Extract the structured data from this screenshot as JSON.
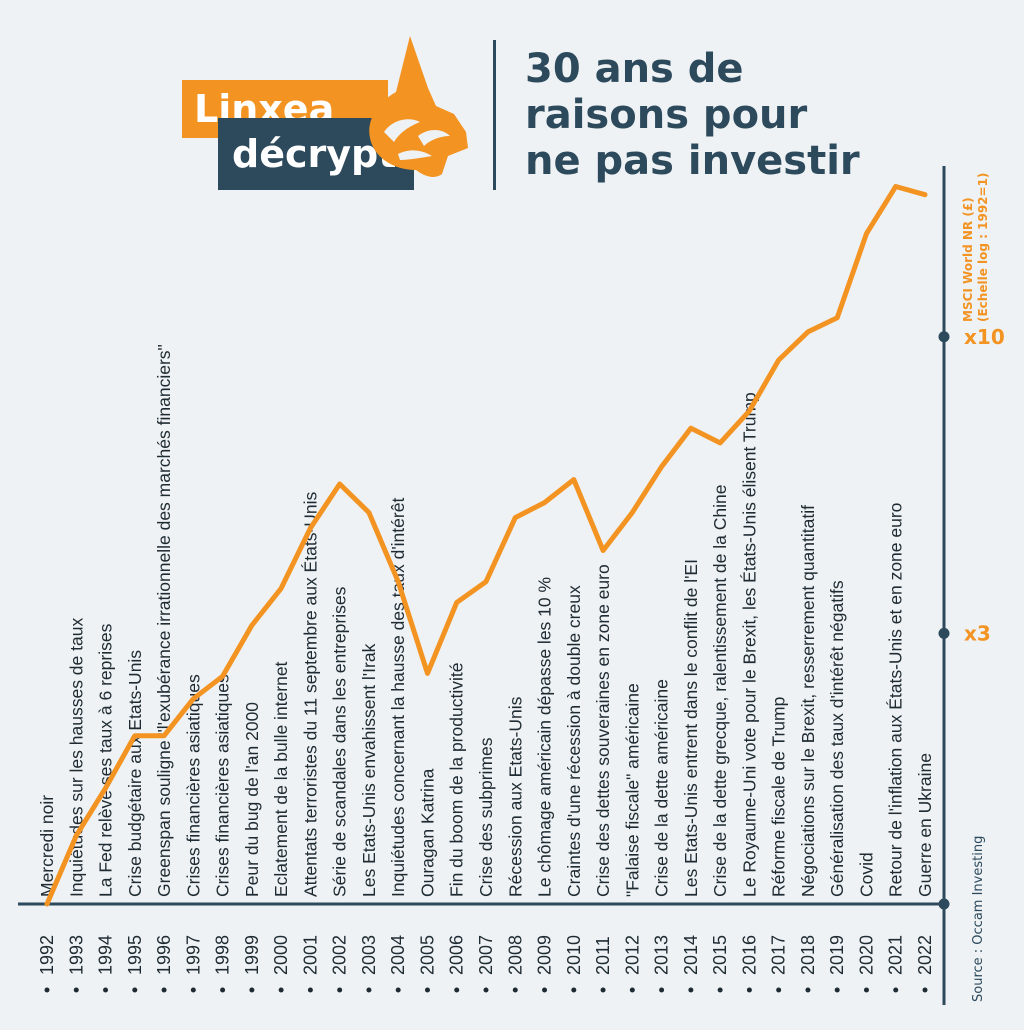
{
  "header": {
    "brand_line1": "Linxea",
    "brand_line2": "décrypte",
    "title_lines": [
      "30 ans de",
      "raisons pour",
      "ne pas investir"
    ]
  },
  "colors": {
    "accent": "#f39322",
    "dark": "#2d4a5d",
    "background": "#eef2f4",
    "text": "#1f2b33"
  },
  "icons": {
    "logo": "lynx-head-icon"
  },
  "source": "Source : Occam Investing",
  "chart_data": {
    "type": "line",
    "scale": "log",
    "ylabel": [
      "MSCI World NR (£)",
      "(Echelle log : 1992=1)"
    ],
    "yticks": [
      {
        "value": 3,
        "label": "x3"
      },
      {
        "value": 10,
        "label": "x10"
      }
    ],
    "ylim": [
      1,
      20
    ],
    "xlim": [
      1992,
      2022
    ],
    "grid": false,
    "x": [
      1992,
      1993,
      1994,
      1995,
      1996,
      1997,
      1998,
      1999,
      2000,
      2001,
      2002,
      2003,
      2004,
      2005,
      2006,
      2007,
      2008,
      2009,
      2010,
      2011,
      2012,
      2013,
      2014,
      2015,
      2016,
      2017,
      2018,
      2019,
      2020,
      2021,
      2022
    ],
    "series": [
      {
        "values": [
          1.0,
          1.32,
          1.6,
          1.98,
          1.98,
          2.3,
          2.52,
          3.1,
          3.6,
          4.6,
          5.5,
          4.9,
          3.7,
          2.55,
          3.4,
          3.7,
          4.8,
          5.1,
          5.6,
          4.2,
          4.9,
          5.9,
          6.9,
          6.5,
          7.4,
          9.1,
          10.2,
          10.8,
          15.2,
          18.4,
          17.8
        ]
      }
    ],
    "events": [
      {
        "year": "1992",
        "label": "Mercredi noir"
      },
      {
        "year": "1993",
        "label": "Inquiétudes sur les hausses de taux"
      },
      {
        "year": "1994",
        "label": "La Fed relève ses taux à 6 reprises"
      },
      {
        "year": "1995",
        "label": "Crise budgétaire aux Etats-Unis"
      },
      {
        "year": "1996",
        "label": "Greenspan souligne \"l'exubérance irrationnelle des marchés financiers\""
      },
      {
        "year": "1997",
        "label": "Crises financières asiatiques"
      },
      {
        "year": "1998",
        "label": "Crises financières asiatiques"
      },
      {
        "year": "1999",
        "label": "Peur du bug de l'an 2000"
      },
      {
        "year": "2000",
        "label": "Eclatement de la bulle internet"
      },
      {
        "year": "2001",
        "label": "Attentats terroristes du 11 septembre aux États-Unis"
      },
      {
        "year": "2002",
        "label": "Série de scandales dans les entreprises"
      },
      {
        "year": "2003",
        "label": "Les Etats-Unis envahissent l'Irak"
      },
      {
        "year": "2004",
        "label": "Inquiétudes concernant la hausse des taux d'intérêt"
      },
      {
        "year": "2005",
        "label": "Ouragan Katrina"
      },
      {
        "year": "2006",
        "label": "Fin du boom de la productivité"
      },
      {
        "year": "2007",
        "label": "Crise des subprimes"
      },
      {
        "year": "2008",
        "label": "Récession aux Etats-Unis"
      },
      {
        "year": "2009",
        "label": "Le chômage américain dépasse les 10 %"
      },
      {
        "year": "2010",
        "label": "Craintes d'une récession à double creux"
      },
      {
        "year": "2011",
        "label": "Crise des dettes souveraines en zone euro"
      },
      {
        "year": "2012",
        "label": "\"Falaise fiscale\" américaine"
      },
      {
        "year": "2013",
        "label": "Crise de la dette américaine"
      },
      {
        "year": "2014",
        "label": "Les Etats-Unis entrent dans le conflit de l'EI"
      },
      {
        "year": "2015",
        "label": "Crise de la dette grecque, ralentissement de la Chine"
      },
      {
        "year": "2016",
        "label": "Le Royaume-Uni vote pour le Brexit, les États-Unis élisent Trump"
      },
      {
        "year": "2017",
        "label": "Réforme fiscale de Trump"
      },
      {
        "year": "2018",
        "label": "Négociations sur le Brexit, resserrement quantitatif"
      },
      {
        "year": "2019",
        "label": "Généralisation des taux d'intérêt négatifs"
      },
      {
        "year": "2020",
        "label": "Covid"
      },
      {
        "year": "2021",
        "label": "Retour de l'inflation aux États-Unis et en zone euro"
      },
      {
        "year": "2022",
        "label": "Guerre en Ukraine"
      }
    ]
  }
}
